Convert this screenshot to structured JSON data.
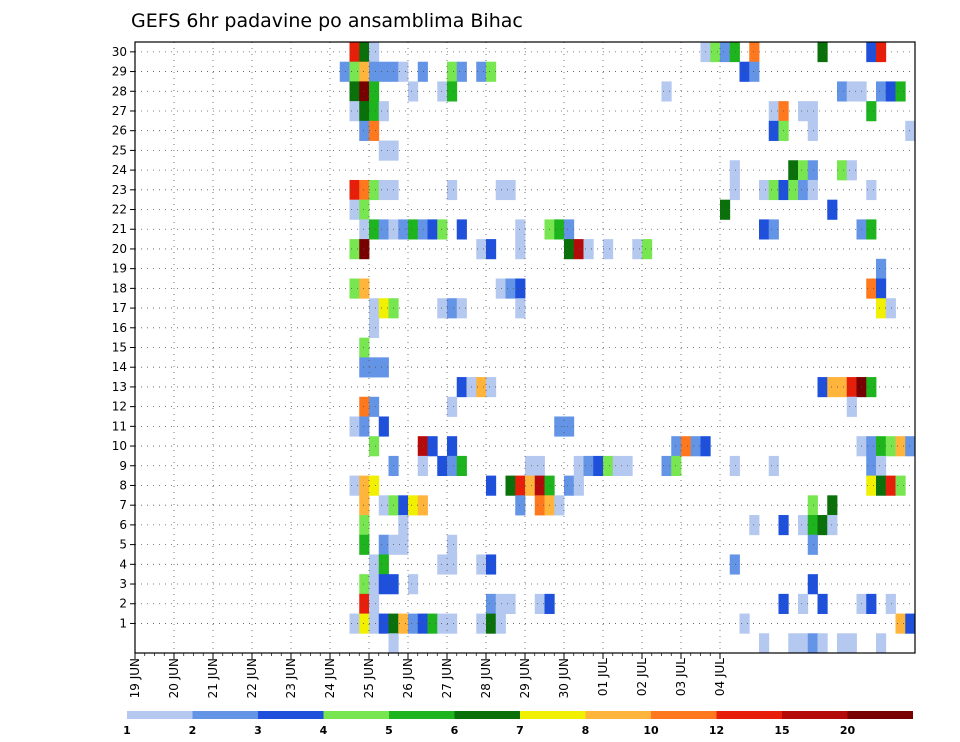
{
  "chart_data": {
    "type": "heatmap",
    "title": "GEFS 6hr padavine po ansamblima Bihac",
    "xlabel": "",
    "ylabel": "",
    "y_ticks": [
      "1",
      "2",
      "3",
      "4",
      "5",
      "6",
      "7",
      "8",
      "9",
      "10",
      "11",
      "12",
      "13",
      "14",
      "15",
      "16",
      "17",
      "18",
      "19",
      "20",
      "21",
      "22",
      "23",
      "24",
      "25",
      "26",
      "27",
      "28",
      "29",
      "30"
    ],
    "x_ticks": [
      "19 JUN",
      "20 JUN",
      "21 JUN",
      "22 JUN",
      "23 JUN",
      "24 JUN",
      "25 JUN",
      "26 JUN",
      "27 JUN",
      "28 JUN",
      "29 JUN",
      "30 JUN",
      "01 JUL",
      "02 JUL",
      "03 JUL",
      "04 JUL"
    ],
    "time_steps_per_day": 4,
    "grid": true,
    "color_scale": {
      "levels": [
        "1",
        "2",
        "3",
        "4",
        "5",
        "6",
        "7",
        "8",
        "10",
        "12",
        "15",
        "20"
      ],
      "colors": [
        "#b4c8f0",
        "#6494e6",
        "#1e50dc",
        "#78e650",
        "#1eb41e",
        "#0a700a",
        "#f0f000",
        "#ffb43c",
        "#ff781e",
        "#e61e0a",
        "#b40a0a",
        "#780000"
      ]
    },
    "legend_position": "bottom",
    "colors_legend_key": "cell values are legend class indices 0-11 (0 = 1-2 mm ... 11 = >20 mm)",
    "cells": [
      [
        30,
        22,
        9
      ],
      [
        30,
        23,
        5
      ],
      [
        30,
        24,
        0
      ],
      [
        30,
        58,
        0
      ],
      [
        30,
        59,
        3
      ],
      [
        30,
        60,
        1
      ],
      [
        30,
        61,
        4
      ],
      [
        30,
        63,
        8
      ],
      [
        30,
        70,
        5
      ],
      [
        30,
        75,
        2
      ],
      [
        30,
        76,
        9
      ],
      [
        29,
        21,
        1
      ],
      [
        29,
        22,
        3
      ],
      [
        29,
        23,
        7
      ],
      [
        29,
        24,
        1
      ],
      [
        29,
        25,
        1
      ],
      [
        29,
        26,
        1
      ],
      [
        29,
        27,
        0
      ],
      [
        29,
        29,
        1
      ],
      [
        29,
        32,
        3
      ],
      [
        29,
        33,
        1
      ],
      [
        29,
        35,
        1
      ],
      [
        29,
        36,
        3
      ],
      [
        29,
        62,
        2
      ],
      [
        29,
        63,
        1
      ],
      [
        28,
        22,
        5
      ],
      [
        28,
        23,
        11
      ],
      [
        28,
        24,
        4
      ],
      [
        28,
        28,
        0
      ],
      [
        28,
        31,
        0
      ],
      [
        28,
        32,
        4
      ],
      [
        28,
        54,
        0
      ],
      [
        28,
        72,
        1
      ],
      [
        28,
        73,
        0
      ],
      [
        28,
        74,
        0
      ],
      [
        28,
        76,
        1
      ],
      [
        28,
        77,
        2
      ],
      [
        28,
        78,
        4
      ],
      [
        27,
        22,
        0
      ],
      [
        27,
        23,
        5
      ],
      [
        27,
        24,
        4
      ],
      [
        27,
        25,
        0
      ],
      [
        27,
        65,
        0
      ],
      [
        27,
        66,
        8
      ],
      [
        27,
        68,
        0
      ],
      [
        27,
        69,
        0
      ],
      [
        27,
        75,
        4
      ],
      [
        26,
        23,
        1
      ],
      [
        26,
        24,
        8
      ],
      [
        26,
        65,
        2
      ],
      [
        26,
        66,
        3
      ],
      [
        26,
        69,
        0
      ],
      [
        26,
        79,
        0
      ],
      [
        25,
        25,
        0
      ],
      [
        25,
        26,
        0
      ],
      [
        24,
        61,
        0
      ],
      [
        24,
        67,
        5
      ],
      [
        24,
        68,
        3
      ],
      [
        24,
        69,
        1
      ],
      [
        24,
        72,
        3
      ],
      [
        24,
        73,
        0
      ],
      [
        23,
        22,
        9
      ],
      [
        23,
        23,
        8
      ],
      [
        23,
        24,
        3
      ],
      [
        23,
        25,
        0
      ],
      [
        23,
        26,
        0
      ],
      [
        23,
        32,
        0
      ],
      [
        23,
        37,
        0
      ],
      [
        23,
        38,
        0
      ],
      [
        23,
        61,
        0
      ],
      [
        23,
        64,
        0
      ],
      [
        23,
        65,
        3
      ],
      [
        23,
        66,
        2
      ],
      [
        23,
        67,
        3
      ],
      [
        23,
        68,
        1
      ],
      [
        23,
        69,
        0
      ],
      [
        23,
        75,
        0
      ],
      [
        22,
        22,
        0
      ],
      [
        22,
        23,
        3
      ],
      [
        22,
        60,
        5
      ],
      [
        22,
        71,
        2
      ],
      [
        21,
        23,
        0
      ],
      [
        21,
        24,
        4
      ],
      [
        21,
        25,
        1
      ],
      [
        21,
        26,
        0
      ],
      [
        21,
        27,
        1
      ],
      [
        21,
        28,
        4
      ],
      [
        21,
        29,
        1
      ],
      [
        21,
        30,
        2
      ],
      [
        21,
        31,
        3
      ],
      [
        21,
        33,
        2
      ],
      [
        21,
        39,
        0
      ],
      [
        21,
        42,
        3
      ],
      [
        21,
        43,
        4
      ],
      [
        21,
        44,
        1
      ],
      [
        21,
        64,
        2
      ],
      [
        21,
        65,
        1
      ],
      [
        21,
        74,
        1
      ],
      [
        21,
        75,
        4
      ],
      [
        20,
        22,
        3
      ],
      [
        20,
        23,
        11
      ],
      [
        20,
        35,
        0
      ],
      [
        20,
        36,
        2
      ],
      [
        20,
        39,
        0
      ],
      [
        20,
        44,
        5
      ],
      [
        20,
        45,
        10
      ],
      [
        20,
        46,
        0
      ],
      [
        20,
        48,
        0
      ],
      [
        20,
        51,
        0
      ],
      [
        20,
        52,
        3
      ],
      [
        19,
        76,
        1
      ],
      [
        18,
        22,
        3
      ],
      [
        18,
        23,
        7
      ],
      [
        18,
        37,
        0
      ],
      [
        18,
        38,
        1
      ],
      [
        18,
        39,
        2
      ],
      [
        18,
        75,
        8
      ],
      [
        18,
        76,
        2
      ],
      [
        17,
        24,
        0
      ],
      [
        17,
        25,
        6
      ],
      [
        17,
        26,
        3
      ],
      [
        17,
        31,
        0
      ],
      [
        17,
        32,
        1
      ],
      [
        17,
        33,
        0
      ],
      [
        17,
        39,
        0
      ],
      [
        17,
        76,
        6
      ],
      [
        17,
        77,
        0
      ],
      [
        16,
        24,
        0
      ],
      [
        15,
        23,
        3
      ],
      [
        14,
        23,
        1
      ],
      [
        14,
        24,
        1
      ],
      [
        14,
        25,
        1
      ],
      [
        13,
        33,
        2
      ],
      [
        13,
        34,
        0
      ],
      [
        13,
        35,
        7
      ],
      [
        13,
        36,
        0
      ],
      [
        13,
        70,
        2
      ],
      [
        13,
        71,
        7
      ],
      [
        13,
        72,
        7
      ],
      [
        13,
        73,
        9
      ],
      [
        13,
        74,
        11
      ],
      [
        13,
        75,
        4
      ],
      [
        12,
        23,
        8
      ],
      [
        12,
        24,
        1
      ],
      [
        12,
        32,
        0
      ],
      [
        12,
        73,
        0
      ],
      [
        11,
        22,
        0
      ],
      [
        11,
        23,
        1
      ],
      [
        11,
        25,
        2
      ],
      [
        11,
        43,
        1
      ],
      [
        11,
        44,
        1
      ],
      [
        10,
        24,
        3
      ],
      [
        10,
        29,
        10
      ],
      [
        10,
        30,
        2
      ],
      [
        10,
        32,
        2
      ],
      [
        10,
        55,
        1
      ],
      [
        10,
        56,
        8
      ],
      [
        10,
        57,
        1
      ],
      [
        10,
        58,
        2
      ],
      [
        10,
        74,
        0
      ],
      [
        10,
        75,
        1
      ],
      [
        10,
        76,
        4
      ],
      [
        10,
        77,
        3
      ],
      [
        10,
        78,
        7
      ],
      [
        10,
        79,
        1
      ],
      [
        9,
        26,
        1
      ],
      [
        9,
        29,
        0
      ],
      [
        9,
        31,
        2
      ],
      [
        9,
        32,
        1
      ],
      [
        9,
        33,
        4
      ],
      [
        9,
        40,
        0
      ],
      [
        9,
        41,
        0
      ],
      [
        9,
        45,
        0
      ],
      [
        9,
        46,
        1
      ],
      [
        9,
        47,
        2
      ],
      [
        9,
        48,
        3
      ],
      [
        9,
        49,
        0
      ],
      [
        9,
        50,
        0
      ],
      [
        9,
        54,
        1
      ],
      [
        9,
        55,
        3
      ],
      [
        9,
        61,
        0
      ],
      [
        9,
        65,
        0
      ],
      [
        9,
        75,
        1
      ],
      [
        9,
        76,
        0
      ],
      [
        8,
        22,
        0
      ],
      [
        8,
        23,
        7
      ],
      [
        8,
        24,
        6
      ],
      [
        8,
        36,
        2
      ],
      [
        8,
        38,
        5
      ],
      [
        8,
        39,
        9
      ],
      [
        8,
        40,
        7
      ],
      [
        8,
        41,
        10
      ],
      [
        8,
        42,
        4
      ],
      [
        8,
        44,
        1
      ],
      [
        8,
        45,
        0
      ],
      [
        8,
        75,
        6
      ],
      [
        8,
        76,
        5
      ],
      [
        8,
        77,
        9
      ],
      [
        8,
        78,
        3
      ],
      [
        7,
        23,
        7
      ],
      [
        7,
        25,
        0
      ],
      [
        7,
        26,
        3
      ],
      [
        7,
        27,
        2
      ],
      [
        7,
        28,
        6
      ],
      [
        7,
        29,
        7
      ],
      [
        7,
        39,
        1
      ],
      [
        7,
        41,
        8
      ],
      [
        7,
        42,
        7
      ],
      [
        7,
        43,
        0
      ],
      [
        7,
        69,
        3
      ],
      [
        7,
        71,
        5
      ],
      [
        6,
        23,
        3
      ],
      [
        6,
        27,
        0
      ],
      [
        6,
        63,
        0
      ],
      [
        6,
        66,
        2
      ],
      [
        6,
        68,
        0
      ],
      [
        6,
        69,
        4
      ],
      [
        6,
        70,
        5
      ],
      [
        6,
        71,
        0
      ],
      [
        5,
        23,
        4
      ],
      [
        5,
        25,
        1
      ],
      [
        5,
        26,
        0
      ],
      [
        5,
        27,
        0
      ],
      [
        5,
        32,
        0
      ],
      [
        5,
        69,
        1
      ],
      [
        4,
        24,
        0
      ],
      [
        4,
        25,
        4
      ],
      [
        4,
        31,
        0
      ],
      [
        4,
        32,
        0
      ],
      [
        4,
        35,
        0
      ],
      [
        4,
        36,
        2
      ],
      [
        4,
        61,
        1
      ],
      [
        3,
        23,
        3
      ],
      [
        3,
        24,
        0
      ],
      [
        3,
        25,
        2
      ],
      [
        3,
        26,
        2
      ],
      [
        3,
        28,
        0
      ],
      [
        3,
        69,
        2
      ],
      [
        2,
        23,
        9
      ],
      [
        2,
        24,
        0
      ],
      [
        2,
        36,
        1
      ],
      [
        2,
        37,
        0
      ],
      [
        2,
        38,
        0
      ],
      [
        2,
        41,
        0
      ],
      [
        2,
        42,
        2
      ],
      [
        2,
        66,
        2
      ],
      [
        2,
        68,
        0
      ],
      [
        2,
        70,
        2
      ],
      [
        2,
        74,
        0
      ],
      [
        2,
        75,
        2
      ],
      [
        2,
        77,
        0
      ],
      [
        1,
        22,
        0
      ],
      [
        1,
        23,
        6
      ],
      [
        1,
        24,
        0
      ],
      [
        1,
        25,
        2
      ],
      [
        1,
        26,
        5
      ],
      [
        1,
        27,
        7
      ],
      [
        1,
        28,
        1
      ],
      [
        1,
        29,
        2
      ],
      [
        1,
        30,
        4
      ],
      [
        1,
        31,
        0
      ],
      [
        1,
        32,
        0
      ],
      [
        1,
        35,
        0
      ],
      [
        1,
        36,
        5
      ],
      [
        1,
        37,
        0
      ],
      [
        1,
        62,
        0
      ],
      [
        1,
        78,
        7
      ],
      [
        1,
        79,
        2
      ],
      [
        0,
        26,
        0
      ],
      [
        0,
        64,
        0
      ],
      [
        0,
        67,
        0
      ],
      [
        0,
        68,
        0
      ],
      [
        0,
        69,
        1
      ],
      [
        0,
        70,
        0
      ],
      [
        0,
        72,
        0
      ],
      [
        0,
        73,
        0
      ],
      [
        0,
        76,
        0
      ]
    ]
  }
}
